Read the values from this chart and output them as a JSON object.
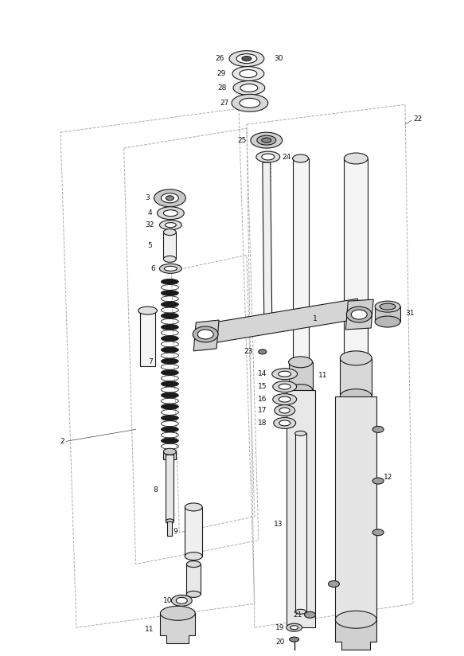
{
  "bg_color": "#ffffff",
  "lc": "#1a1a1a",
  "dc": "#aaaaaa",
  "fs": 6.5,
  "fig_w": 5.83,
  "fig_h": 8.24
}
